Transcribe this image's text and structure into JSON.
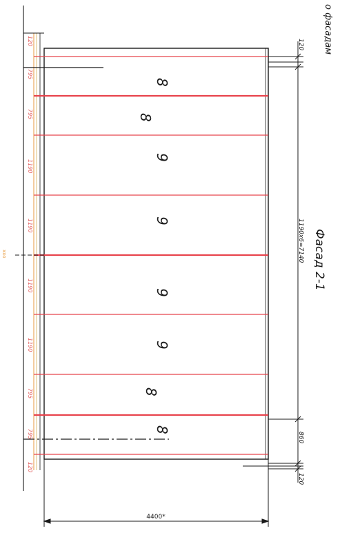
{
  "headings": {
    "facade_title": "Фасад 2-1",
    "side_caption": "о фасадам"
  },
  "left_segments": [
    "120",
    "795",
    "795",
    "1190",
    "1190",
    "1190",
    "1190",
    "795",
    "795",
    "120"
  ],
  "panel_numbers": [
    "8",
    "8",
    "9",
    "9",
    "9",
    "9",
    "8",
    "8"
  ],
  "right_dimensions": {
    "top_end": "120",
    "main_run": "1190x6=7140",
    "lower_run": "860",
    "bottom_end": "120"
  },
  "bottom_dimension": "4400*",
  "left_marker": "ххо",
  "colors": {
    "line": "#1a1a1a",
    "panel_seam": "#e8434c",
    "dim_red": "#e25c5c",
    "dim_orange": "#e79a3c"
  }
}
